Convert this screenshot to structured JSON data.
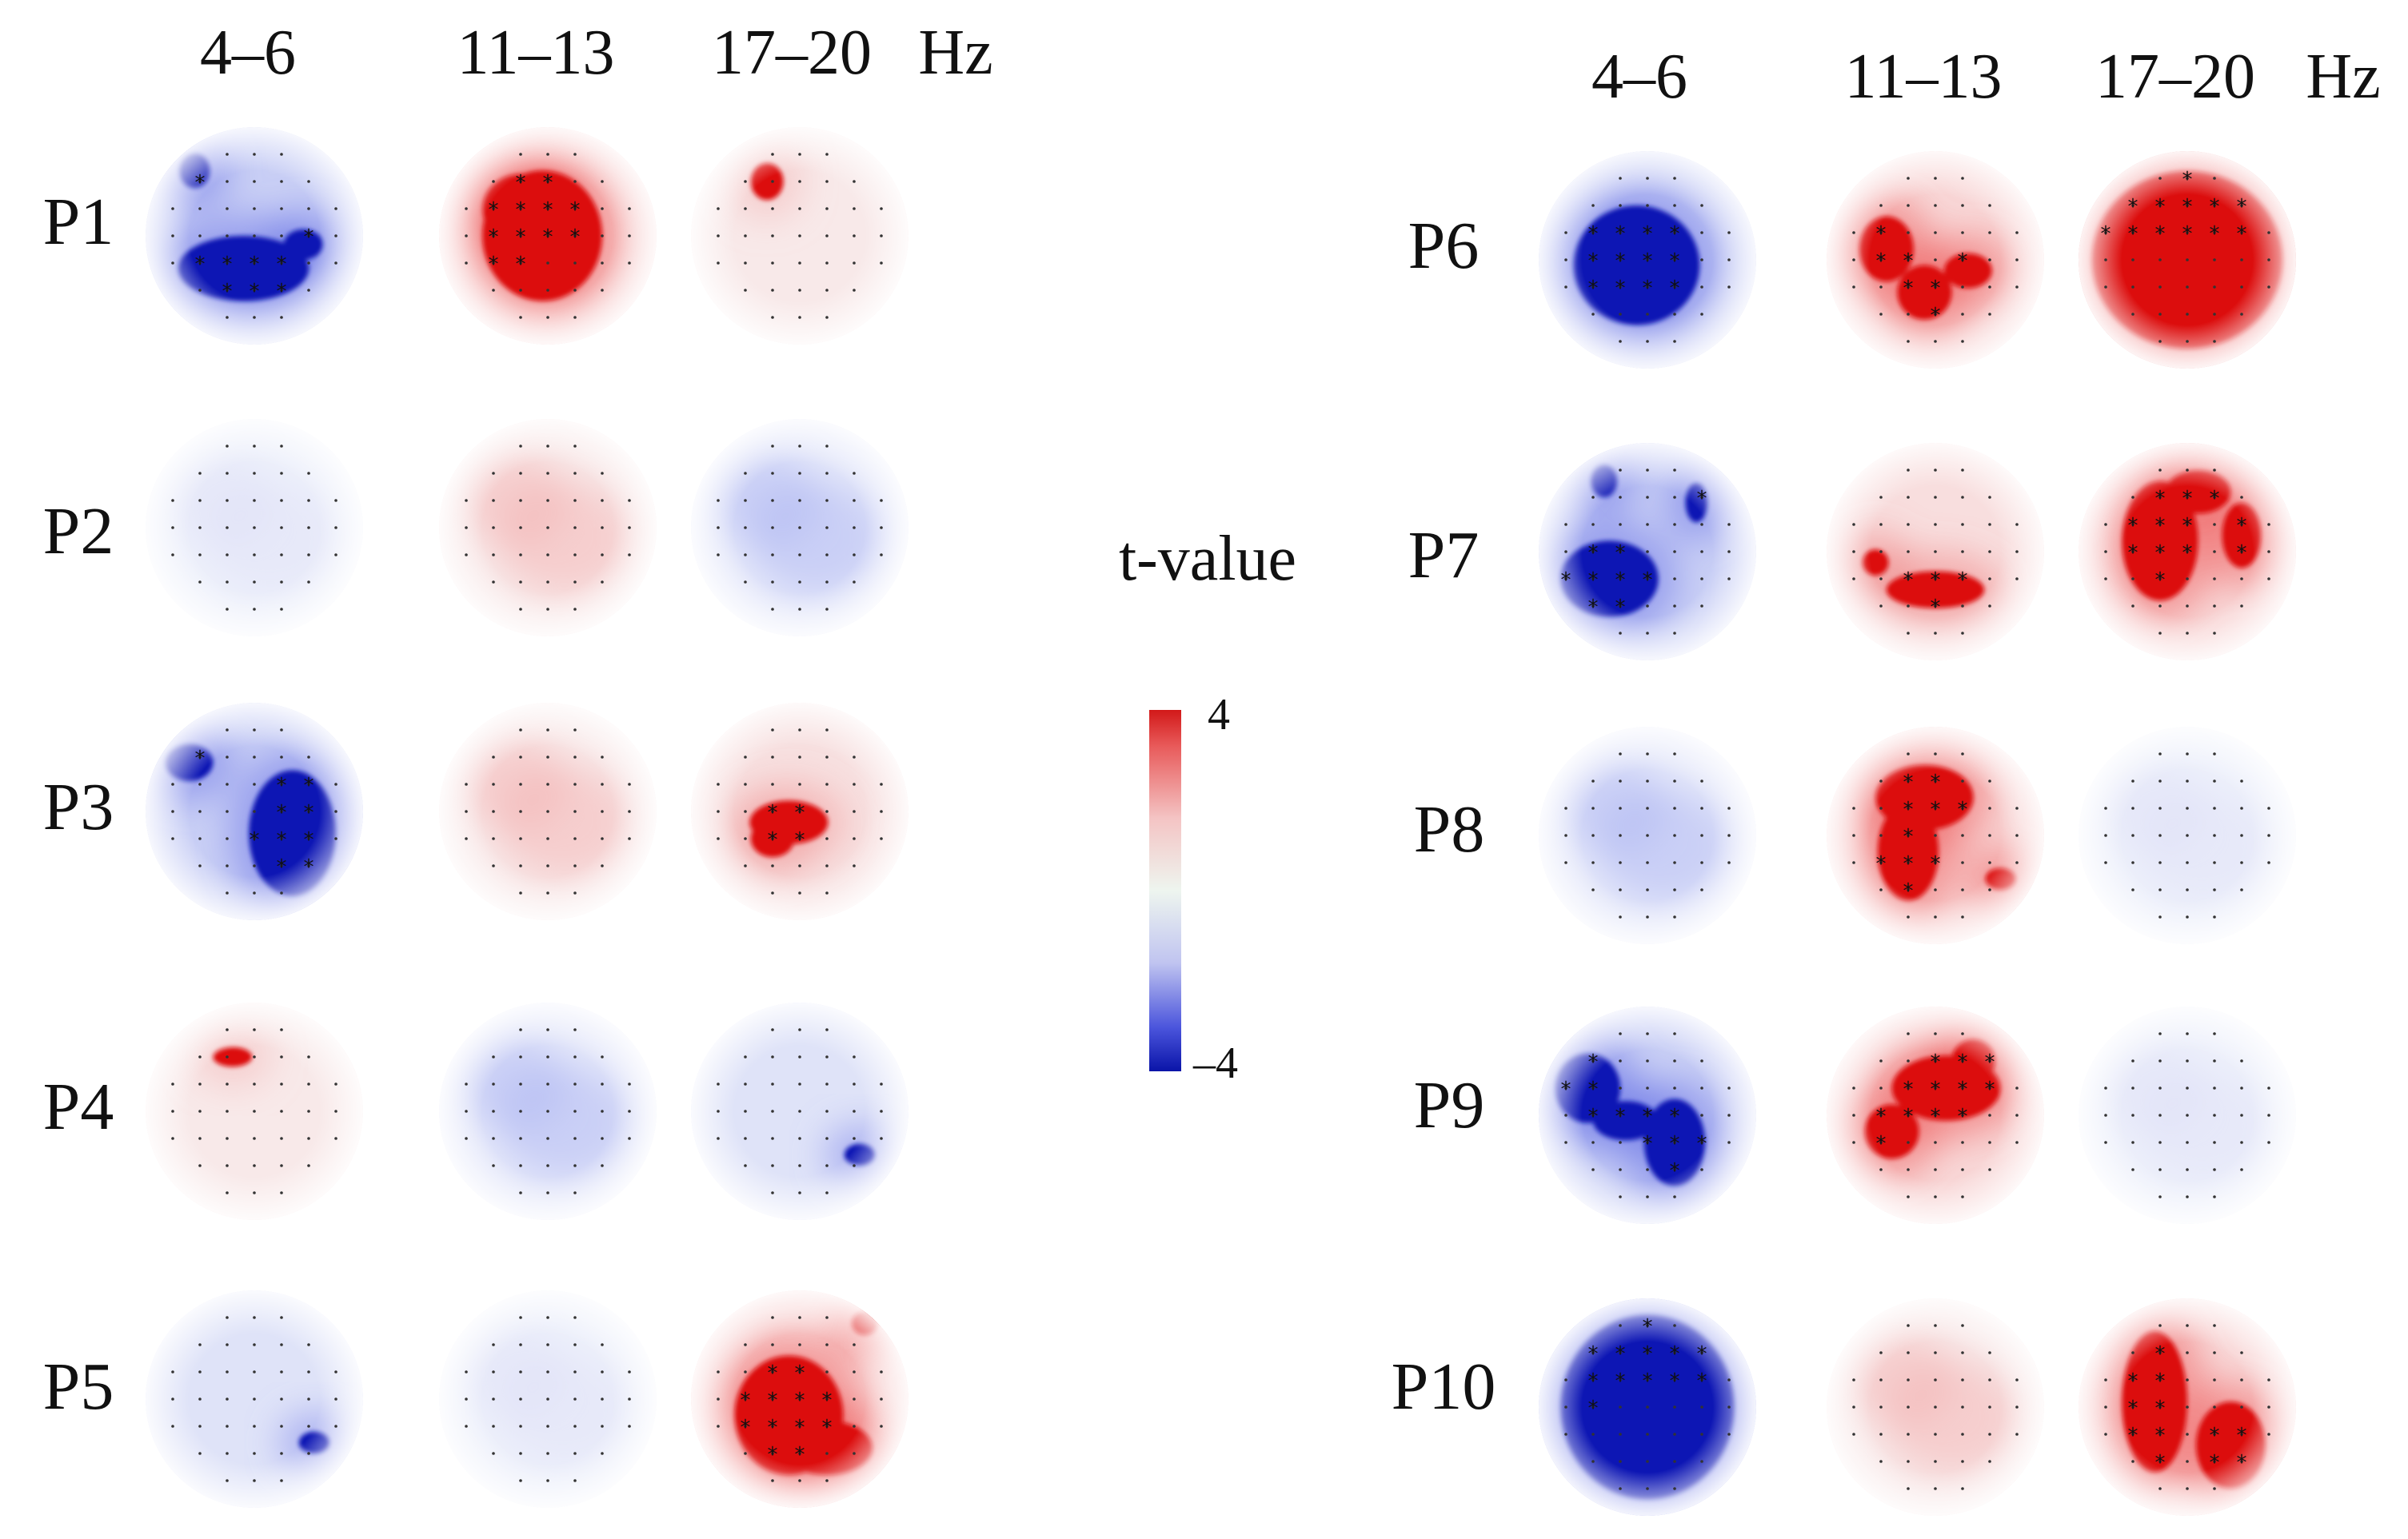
{
  "figure": {
    "left_panel": {
      "headers": [
        "4–6",
        "11–13",
        "17–20",
        "Hz"
      ],
      "participants": [
        "P1",
        "P2",
        "P3",
        "P4",
        "P5"
      ]
    },
    "right_panel": {
      "headers": [
        "4–6",
        "11–13",
        "17–20",
        "Hz"
      ],
      "participants": [
        "P6",
        "P7",
        "P8",
        "P9",
        "P10"
      ]
    },
    "colorbar": {
      "title": "t-value",
      "max_label": "4",
      "min_label": "–4",
      "range": [
        -4,
        4
      ],
      "colors": {
        "neg": "#0a14b4",
        "mid": "#f6faf6",
        "pos": "#dc0a0a"
      }
    },
    "significance_marker": "*",
    "maps": [
      {
        "participant": "P1",
        "band": "4–6",
        "pattern": "strong-negative"
      },
      {
        "participant": "P1",
        "band": "11–13",
        "pattern": "strong-positive"
      },
      {
        "participant": "P1",
        "band": "17–20",
        "pattern": "weak-positive"
      },
      {
        "participant": "P2",
        "band": "4–6",
        "pattern": "near-zero"
      },
      {
        "participant": "P2",
        "band": "11–13",
        "pattern": "weak-positive"
      },
      {
        "participant": "P2",
        "band": "17–20",
        "pattern": "weak-negative"
      },
      {
        "participant": "P3",
        "band": "4–6",
        "pattern": "strong-negative"
      },
      {
        "participant": "P3",
        "band": "11–13",
        "pattern": "weak-positive"
      },
      {
        "participant": "P3",
        "band": "17–20",
        "pattern": "positive-focal"
      },
      {
        "participant": "P4",
        "band": "4–6",
        "pattern": "weak-positive"
      },
      {
        "participant": "P4",
        "band": "11–13",
        "pattern": "weak-negative"
      },
      {
        "participant": "P4",
        "band": "17–20",
        "pattern": "negative"
      },
      {
        "participant": "P5",
        "band": "4–6",
        "pattern": "negative"
      },
      {
        "participant": "P5",
        "band": "11–13",
        "pattern": "near-zero"
      },
      {
        "participant": "P5",
        "band": "17–20",
        "pattern": "strong-positive"
      },
      {
        "participant": "P6",
        "band": "4–6",
        "pattern": "strong-negative"
      },
      {
        "participant": "P6",
        "band": "11–13",
        "pattern": "strong-positive"
      },
      {
        "participant": "P6",
        "band": "17–20",
        "pattern": "strong-positive"
      },
      {
        "participant": "P7",
        "band": "4–6",
        "pattern": "strong-negative"
      },
      {
        "participant": "P7",
        "band": "11–13",
        "pattern": "positive"
      },
      {
        "participant": "P7",
        "band": "17–20",
        "pattern": "strong-positive"
      },
      {
        "participant": "P8",
        "band": "4–6",
        "pattern": "weak-negative"
      },
      {
        "participant": "P8",
        "band": "11–13",
        "pattern": "strong-positive"
      },
      {
        "participant": "P8",
        "band": "17–20",
        "pattern": "near-zero"
      },
      {
        "participant": "P9",
        "band": "4–6",
        "pattern": "strong-negative"
      },
      {
        "participant": "P9",
        "band": "11–13",
        "pattern": "strong-positive"
      },
      {
        "participant": "P9",
        "band": "17–20",
        "pattern": "near-zero"
      },
      {
        "participant": "P10",
        "band": "4–6",
        "pattern": "strong-negative"
      },
      {
        "participant": "P10",
        "band": "11–13",
        "pattern": "weak-positive"
      },
      {
        "participant": "P10",
        "band": "17–20",
        "pattern": "strong-positive"
      }
    ]
  }
}
